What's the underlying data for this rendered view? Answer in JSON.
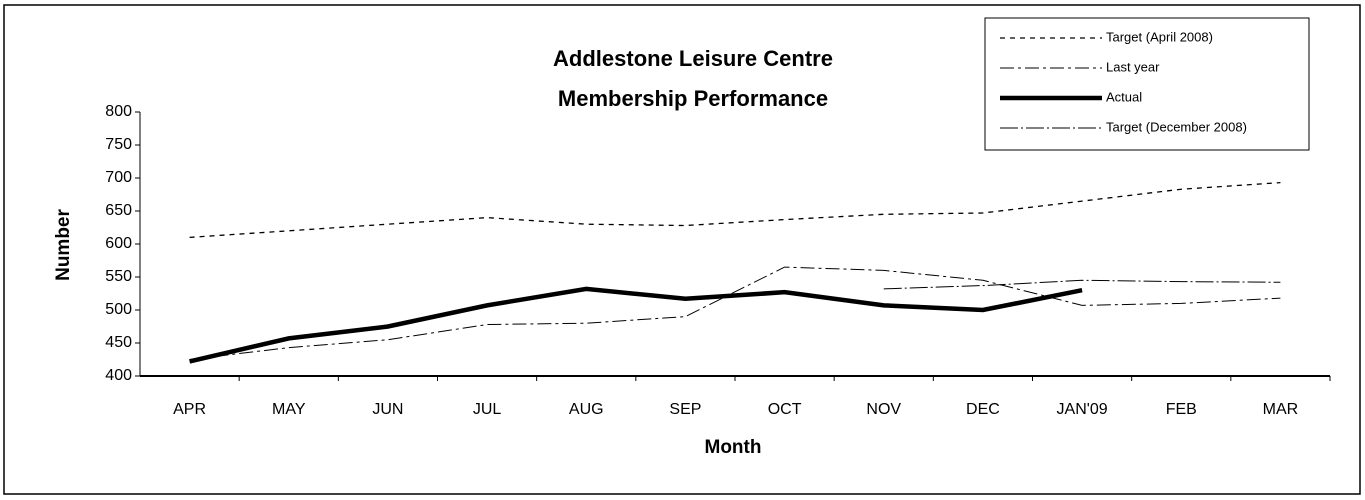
{
  "chart_data": {
    "type": "line",
    "title": [
      "Addlestone Leisure Centre",
      "Membership Performance"
    ],
    "x_label": "Month",
    "y_label": "Number",
    "categories": [
      "APR",
      "MAY",
      "JUN",
      "JUL",
      "AUG",
      "SEP",
      "OCT",
      "NOV",
      "DEC",
      "JAN'09",
      "FEB",
      "MAR"
    ],
    "series": [
      {
        "name": "Target (April 2008)",
        "color": "#000000",
        "values": [
          610,
          620,
          630,
          640,
          630,
          628,
          637,
          645,
          647,
          665,
          683,
          693
        ]
      },
      {
        "name": "Last year",
        "color": "#000000",
        "values": [
          425,
          443,
          455,
          478,
          480,
          490,
          565,
          560,
          545,
          507,
          510,
          518
        ]
      },
      {
        "name": "Actual",
        "color": "#000000",
        "values": [
          422,
          457,
          475,
          507,
          532,
          517,
          527,
          507,
          500,
          530,
          null,
          null
        ]
      },
      {
        "name": "Target (December 2008)",
        "color": "#000000",
        "values": [
          null,
          null,
          null,
          null,
          null,
          null,
          null,
          532,
          537,
          545,
          543,
          542
        ]
      }
    ],
    "ylim": [
      400,
      800
    ],
    "yticks": [
      400,
      450,
      500,
      550,
      600,
      650,
      700,
      750,
      800
    ],
    "grid": false,
    "legend": "top-right"
  }
}
